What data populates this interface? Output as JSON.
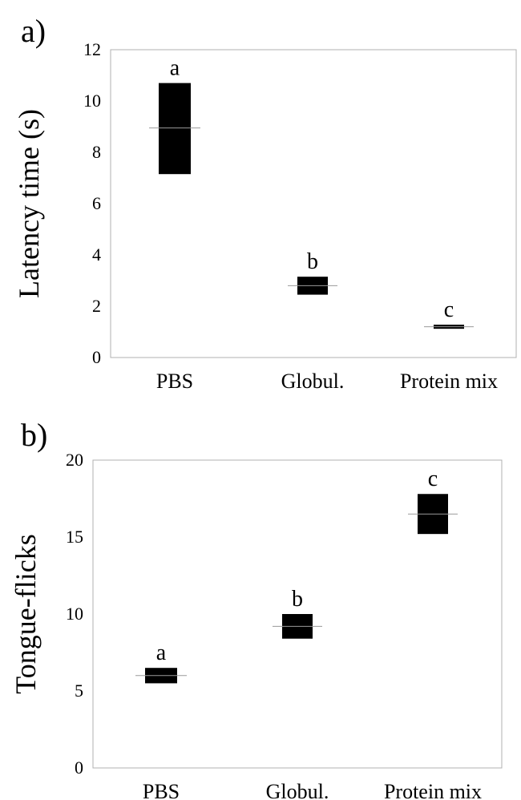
{
  "chart_data": [
    {
      "panel_label": "a)",
      "type": "box",
      "ylabel": "Latency time (s)",
      "xlabel": "",
      "ylim": [
        0,
        12
      ],
      "yticks": [
        "0",
        "2",
        "4",
        "6",
        "8",
        "10",
        "12"
      ],
      "categories": [
        "PBS",
        "Globul.",
        "Protein mix"
      ],
      "boxes": [
        {
          "low": 7.15,
          "high": 10.7,
          "median": 8.95,
          "letter": "a"
        },
        {
          "low": 2.45,
          "high": 3.15,
          "median": 2.8,
          "letter": "b"
        },
        {
          "low": 1.12,
          "high": 1.28,
          "median": 1.2,
          "letter": "c"
        }
      ],
      "grid": false,
      "colors": {
        "box": "#000000",
        "frame": "#b0b0b0",
        "median": "#9a9a9a"
      }
    },
    {
      "panel_label": "b)",
      "type": "box",
      "ylabel": "Tongue-flicks",
      "xlabel": "",
      "ylim": [
        0,
        20
      ],
      "yticks": [
        "0",
        "5",
        "10",
        "15",
        "20"
      ],
      "categories": [
        "PBS",
        "Globul.",
        "Protein mix"
      ],
      "boxes": [
        {
          "low": 5.5,
          "high": 6.5,
          "median": 6.0,
          "letter": "a"
        },
        {
          "low": 8.4,
          "high": 10.0,
          "median": 9.2,
          "letter": "b"
        },
        {
          "low": 15.2,
          "high": 17.8,
          "median": 16.5,
          "letter": "c"
        }
      ],
      "grid": false,
      "colors": {
        "box": "#000000",
        "frame": "#b0b0b0",
        "median": "#9a9a9a"
      }
    }
  ]
}
